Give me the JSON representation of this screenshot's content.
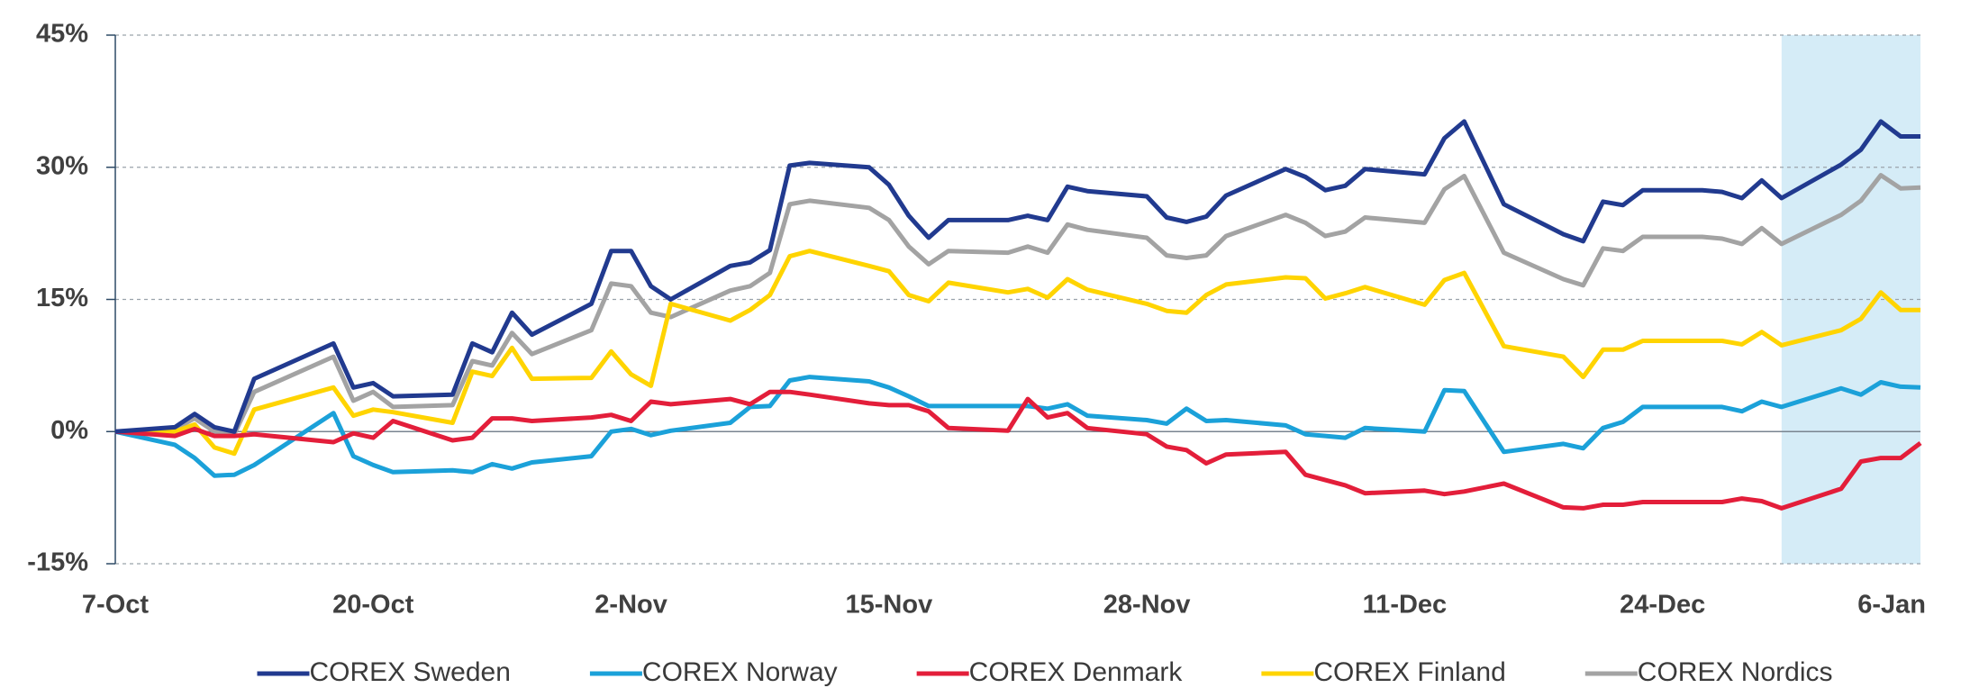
{
  "chart_data": {
    "type": "line",
    "x": [
      0,
      3,
      4,
      5,
      6,
      7,
      11,
      12,
      13,
      14,
      17,
      18,
      19,
      20,
      21,
      24,
      25,
      26,
      27,
      28,
      31,
      32,
      33,
      34,
      35,
      38,
      39,
      40,
      41,
      42,
      45,
      46,
      47,
      48,
      49,
      52,
      53,
      54,
      55,
      56,
      59,
      60,
      61,
      62,
      63,
      66,
      67,
      68,
      70,
      73,
      74,
      75,
      76,
      77,
      80,
      81,
      82,
      83,
      84,
      87,
      88,
      89,
      90,
      91
    ],
    "xlim": [
      0,
      91
    ],
    "xticks": [
      {
        "value": 0,
        "label": "7-Oct"
      },
      {
        "value": 13,
        "label": "20-Oct"
      },
      {
        "value": 26,
        "label": "2-Nov"
      },
      {
        "value": 39,
        "label": "15-Nov"
      },
      {
        "value": 52,
        "label": "28-Nov"
      },
      {
        "value": 65,
        "label": "11-Dec"
      },
      {
        "value": 78,
        "label": "24-Dec"
      },
      {
        "value": 91,
        "label": "6-Jan"
      }
    ],
    "ylim": [
      -15,
      45
    ],
    "yticks": [
      {
        "value": -15,
        "label": "-15%"
      },
      {
        "value": 0,
        "label": "0%"
      },
      {
        "value": 15,
        "label": "15%"
      },
      {
        "value": 30,
        "label": "30%"
      },
      {
        "value": 45,
        "label": "45%"
      }
    ],
    "grid": true,
    "shaded_range": [
      84,
      91
    ],
    "shade_color": "#d5ecf7",
    "series": [
      {
        "name": "COREX Sweden",
        "color": "#213a8f",
        "values": [
          0,
          0.5,
          2,
          0.5,
          0,
          6,
          10,
          5,
          5.5,
          4,
          4.2,
          10,
          9,
          13.5,
          11,
          14.5,
          20.5,
          20.5,
          16.5,
          15,
          18.8,
          19.2,
          20.6,
          30.2,
          30.5,
          30,
          28,
          24.5,
          22,
          24,
          24,
          24.5,
          24,
          27.8,
          27.3,
          26.7,
          24.3,
          23.8,
          24.4,
          26.8,
          29.8,
          28.9,
          27.4,
          27.9,
          29.8,
          29.2,
          33.3,
          35.2,
          25.8,
          22.4,
          21.6,
          26.1,
          25.7,
          27.4,
          27.4,
          27.2,
          26.5,
          28.5,
          26.5,
          30.3,
          32,
          35.2,
          33.5,
          33.5
        ]
      },
      {
        "name": "COREX Norway",
        "color": "#1ba1d9",
        "values": [
          0,
          -1.5,
          -3,
          -5,
          -4.9,
          -3.8,
          2.1,
          -2.8,
          -3.8,
          -4.6,
          -4.4,
          -4.6,
          -3.7,
          -4.2,
          -3.5,
          -2.8,
          0,
          0.3,
          -0.4,
          0.1,
          1,
          2.8,
          2.9,
          5.8,
          6.2,
          5.7,
          5,
          4,
          2.9,
          2.9,
          2.9,
          2.9,
          2.6,
          3.1,
          1.8,
          1.3,
          0.9,
          2.6,
          1.2,
          1.3,
          0.7,
          -0.3,
          -0.5,
          -0.7,
          0.4,
          0,
          4.7,
          4.6,
          -2.3,
          -1.4,
          -1.9,
          0.4,
          1.1,
          2.8,
          2.8,
          2.8,
          2.3,
          3.4,
          2.8,
          4.9,
          4.2,
          5.6,
          5.1,
          5
        ]
      },
      {
        "name": "COREX Denmark",
        "color": "#e31e3a",
        "values": [
          0,
          -0.5,
          0.3,
          -0.5,
          -0.5,
          -0.3,
          -1.2,
          -0.2,
          -0.7,
          1.2,
          -1,
          -0.7,
          1.5,
          1.5,
          1.2,
          1.6,
          1.9,
          1.2,
          3.4,
          3.1,
          3.7,
          3.1,
          4.5,
          4.5,
          4.2,
          3.2,
          3,
          3,
          2.3,
          0.4,
          0.1,
          3.7,
          1.6,
          2.1,
          0.4,
          -0.3,
          -1.7,
          -2.1,
          -3.6,
          -2.6,
          -2.3,
          -4.9,
          -5.5,
          -6.1,
          -7,
          -6.7,
          -7.1,
          -6.8,
          -5.9,
          -8.6,
          -8.7,
          -8.3,
          -8.3,
          -8,
          -8,
          -8,
          -7.6,
          -7.9,
          -8.7,
          -6.5,
          -3.4,
          -3,
          -3,
          -1.3
        ]
      },
      {
        "name": "COREX Finland",
        "color": "#ffd400",
        "values": [
          0,
          0,
          0.8,
          -1.8,
          -2.5,
          2.5,
          5,
          1.8,
          2.5,
          2.2,
          1,
          6.8,
          6.3,
          9.5,
          6,
          6.1,
          9.1,
          6.5,
          5.2,
          14.5,
          12.6,
          13.8,
          15.5,
          19.9,
          20.5,
          18.8,
          18.2,
          15.5,
          14.8,
          16.9,
          15.8,
          16.2,
          15.2,
          17.3,
          16.1,
          14.5,
          13.7,
          13.5,
          15.5,
          16.7,
          17.5,
          17.4,
          15.1,
          15.7,
          16.4,
          14.4,
          17.2,
          18,
          9.7,
          8.5,
          6.2,
          9.3,
          9.3,
          10.3,
          10.3,
          10.3,
          9.9,
          11.3,
          9.8,
          11.5,
          12.8,
          15.8,
          13.8,
          13.8
        ]
      },
      {
        "name": "COREX Nordics",
        "color": "#a3a3a3",
        "values": [
          0,
          0.3,
          1.5,
          0,
          -0.3,
          4.5,
          8.5,
          3.5,
          4.5,
          2.8,
          3,
          8,
          7.5,
          11.2,
          8.8,
          11.5,
          16.8,
          16.5,
          13.5,
          13,
          16,
          16.5,
          18,
          25.8,
          26.2,
          25.4,
          24,
          21,
          19,
          20.5,
          20.3,
          21,
          20.3,
          23.5,
          22.9,
          22,
          20,
          19.7,
          20,
          22.2,
          24.6,
          23.7,
          22.2,
          22.7,
          24.3,
          23.7,
          27.5,
          29,
          20.3,
          17.3,
          16.6,
          20.8,
          20.5,
          22.1,
          22.1,
          21.9,
          21.3,
          23.1,
          21.3,
          24.6,
          26.2,
          29.1,
          27.6,
          27.7
        ]
      }
    ]
  }
}
